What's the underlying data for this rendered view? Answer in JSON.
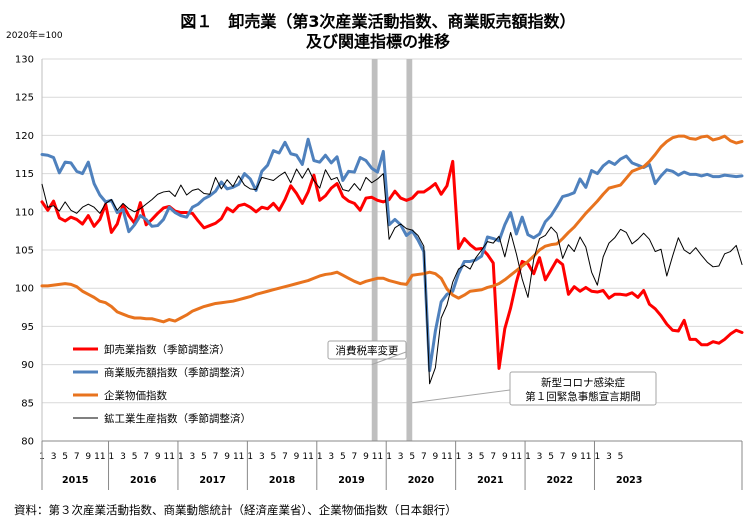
{
  "title_line1": "図１　卸売業（第3次産業活動指数、商業販売額指数）",
  "title_line2": "及び関連指標の推移",
  "unit_label": "2020年=100",
  "source": "資料：第３次産業活動指数、商業動態統計（経済産業省）、企業物価指数（日本銀行）",
  "chart_data": {
    "type": "line",
    "ylim": [
      80,
      130
    ],
    "yticks": [
      80,
      85,
      90,
      95,
      100,
      105,
      110,
      115,
      120,
      125,
      130
    ],
    "grid": true,
    "legend_position": "bottom-left",
    "x_month_labels": [
      "1",
      "3",
      "5",
      "7",
      "9",
      "11",
      "1",
      "3",
      "5",
      "7",
      "9",
      "11",
      "1",
      "3",
      "5",
      "7",
      "9",
      "11",
      "1",
      "3",
      "5",
      "7",
      "9",
      "11",
      "1",
      "3",
      "5",
      "7",
      "9",
      "11",
      "1",
      "3",
      "5",
      "7",
      "9",
      "11",
      "1",
      "3",
      "5",
      "7",
      "9",
      "11",
      "1",
      "3",
      "5",
      "7",
      "9",
      "11",
      "1",
      "3",
      "5"
    ],
    "years": [
      "2015",
      "2016",
      "2017",
      "2018",
      "2019",
      "2020",
      "2021",
      "2022",
      "2023"
    ],
    "shaded_periods": [
      {
        "start_index": 57,
        "end_index": 58
      },
      {
        "start_index": 63,
        "end_index": 64
      }
    ],
    "annotations": [
      {
        "text": "消費税率変更",
        "target_index": 57,
        "target_value": 90
      },
      {
        "text": "新型コロナ感染症",
        "text2": "第１回緊急事態宣言期間",
        "target_index": 64,
        "target_value": 85
      }
    ],
    "series": [
      {
        "name": "卸売業指数（季節調整済）",
        "color": "#ff0000",
        "values": [
          111.3,
          110.2,
          111.4,
          109.2,
          108.8,
          109.3,
          109.0,
          108.4,
          109.5,
          108.1,
          109.0,
          111.0,
          107.3,
          108.4,
          110.9,
          109.5,
          108.5,
          111.2,
          108.3,
          109.0,
          109.8,
          110.5,
          110.7,
          110.1,
          109.9,
          109.9,
          109.8,
          108.8,
          107.9,
          108.2,
          108.5,
          109.1,
          110.5,
          110.0,
          110.8,
          111.0,
          110.6,
          110.0,
          110.6,
          110.4,
          111.1,
          110.2,
          111.6,
          113.4,
          112.4,
          111.1,
          112.6,
          114.8,
          111.5,
          112.1,
          113.1,
          113.7,
          112.0,
          111.4,
          111.1,
          110.2,
          111.8,
          111.9,
          111.5,
          111.3,
          111.6,
          112.7,
          111.8,
          111.5,
          111.8,
          112.6,
          112.6,
          113.1,
          113.7,
          112.3,
          113.4,
          116.6,
          105.2,
          106.5,
          105.7,
          105.1,
          105.2,
          104.4,
          103.3,
          89.5,
          94.7,
          97.4,
          100.8,
          103.5,
          103.2,
          101.9,
          104.0,
          101.1,
          102.4,
          103.7,
          103.1,
          99.2,
          100.2,
          99.6,
          100.1,
          99.6,
          99.5,
          99.7,
          98.7,
          99.2,
          99.2,
          99.1,
          99.4,
          98.8,
          99.7,
          97.9,
          97.3,
          96.4,
          95.3,
          94.5,
          94.4,
          95.8,
          93.3,
          93.3,
          92.6,
          92.6,
          93.0,
          92.8,
          93.3,
          94.0,
          94.5,
          94.2
        ]
      },
      {
        "name": "商業販売額指数（季節調整済）",
        "color": "#4f81bd",
        "values": [
          117.5,
          117.4,
          117.1,
          115.1,
          116.5,
          116.4,
          115.3,
          115.0,
          116.5,
          113.7,
          112.2,
          111.3,
          111.5,
          109.9,
          110.3,
          107.4,
          108.3,
          109.5,
          109.0,
          108.1,
          108.2,
          109.0,
          110.6,
          109.9,
          109.5,
          109.3,
          110.6,
          111.0,
          111.7,
          112.1,
          112.7,
          113.9,
          113.0,
          113.2,
          113.6,
          115.0,
          114.3,
          112.8,
          115.3,
          116.1,
          118.0,
          117.7,
          119.1,
          117.6,
          117.4,
          116.2,
          119.5,
          116.7,
          116.5,
          117.4,
          116.4,
          117.2,
          114.1,
          115.3,
          115.2,
          117.1,
          116.7,
          115.7,
          115.2,
          117.9,
          108.3,
          109.0,
          108.3,
          106.9,
          107.5,
          106.3,
          104.8,
          89.2,
          94.4,
          98.2,
          99.2,
          99.6,
          101.9,
          103.5,
          103.5,
          103.7,
          104.2,
          106.7,
          106.5,
          106.2,
          108.3,
          109.9,
          107.1,
          109.3,
          107.0,
          106.6,
          107.1,
          108.7,
          109.5,
          110.7,
          112.0,
          112.2,
          112.5,
          114.3,
          113.2,
          115.4,
          115.0,
          116.0,
          116.6,
          116.2,
          116.9,
          117.3,
          116.4,
          116.1,
          115.8,
          116.2,
          113.7,
          114.7,
          115.5,
          115.3,
          114.8,
          115.2,
          114.9,
          114.9,
          114.7,
          114.9,
          114.6,
          114.6,
          114.8,
          114.7,
          114.6,
          114.7
        ]
      },
      {
        "name": "企業物価指数",
        "color": "#e8731e",
        "values": [
          100.3,
          100.3,
          100.4,
          100.5,
          100.6,
          100.5,
          100.2,
          99.6,
          99.2,
          98.8,
          98.3,
          98.1,
          97.6,
          96.9,
          96.6,
          96.3,
          96.1,
          96.1,
          96.0,
          96.0,
          95.8,
          95.6,
          95.9,
          95.7,
          96.1,
          96.5,
          97.0,
          97.3,
          97.6,
          97.8,
          98.0,
          98.1,
          98.2,
          98.3,
          98.5,
          98.7,
          98.9,
          99.2,
          99.4,
          99.6,
          99.8,
          100.0,
          100.2,
          100.4,
          100.6,
          100.8,
          101.0,
          101.3,
          101.6,
          101.8,
          101.9,
          102.1,
          101.7,
          101.3,
          100.9,
          100.6,
          100.9,
          101.1,
          101.3,
          101.3,
          101.0,
          100.8,
          100.6,
          100.5,
          101.7,
          101.8,
          101.9,
          102.1,
          101.9,
          101.3,
          99.9,
          99.1,
          98.7,
          99.1,
          99.6,
          99.7,
          99.8,
          100.1,
          100.3,
          100.6,
          101.1,
          101.7,
          102.3,
          102.9,
          103.5,
          104.2,
          105.0,
          105.5,
          105.7,
          105.8,
          106.5,
          107.3,
          108.0,
          108.9,
          109.8,
          110.6,
          111.4,
          112.3,
          113.1,
          113.3,
          113.5,
          114.4,
          115.3,
          115.6,
          115.9,
          116.6,
          117.5,
          118.5,
          119.2,
          119.7,
          119.9,
          119.9,
          119.6,
          119.5,
          119.8,
          119.9,
          119.4,
          119.6,
          119.9,
          119.3,
          119.0,
          119.2
        ]
      },
      {
        "name": "鉱工業生産指数（季節調整済）",
        "color": "#000000",
        "values": [
          113.6,
          110.6,
          110.8,
          110.1,
          111.3,
          110.2,
          109.8,
          110.6,
          111.0,
          110.6,
          109.8,
          111.1,
          111.6,
          110.2,
          111.1,
          110.4,
          110.0,
          110.4,
          111.0,
          111.6,
          112.3,
          112.6,
          112.7,
          112.0,
          113.5,
          112.2,
          112.8,
          113.0,
          112.4,
          112.3,
          114.5,
          113.0,
          114.2,
          113.3,
          114.7,
          113.5,
          113.0,
          112.9,
          114.5,
          114.3,
          114.1,
          114.7,
          115.2,
          113.8,
          115.6,
          114.4,
          115.7,
          114.1,
          113.1,
          115.5,
          114.2,
          114.5,
          112.9,
          112.7,
          113.7,
          112.8,
          114.5,
          113.8,
          114.3,
          115.0,
          106.4,
          107.9,
          108.4,
          107.8,
          107.6,
          106.9,
          105.5,
          87.5,
          89.6,
          96.1,
          97.8,
          100.8,
          102.5,
          103.0,
          102.5,
          104.0,
          105.0,
          106.1,
          105.9,
          106.8,
          104.1,
          107.3,
          104.5,
          101.2,
          98.8,
          103.8,
          106.5,
          106.9,
          108.0,
          107.2,
          103.9,
          105.7,
          104.8,
          106.7,
          105.4,
          102.1,
          100.4,
          104.1,
          105.9,
          106.6,
          107.7,
          107.3,
          105.8,
          106.4,
          107.2,
          106.4,
          104.8,
          105.1,
          101.6,
          104.2,
          106.6,
          105.0,
          104.5,
          105.3,
          104.3,
          103.4,
          102.8,
          102.9,
          104.5,
          104.8,
          105.6,
          103.1
        ]
      }
    ]
  }
}
